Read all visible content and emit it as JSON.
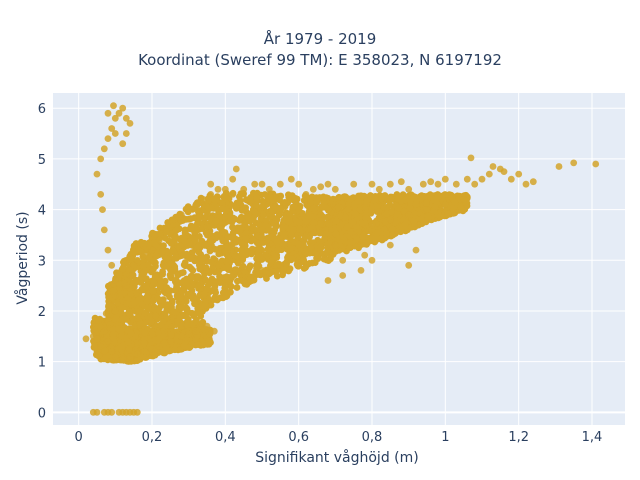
{
  "chart_data": {
    "type": "scatter",
    "title_line1": "År 1979 - 2019",
    "title_line2": "Koordinat (Sweref 99 TM): E 358023, N 6197192",
    "xlabel": "Signifikant våghöjd (m)",
    "ylabel": "Vågperiod (s)",
    "xlim": [
      -0.07,
      1.49
    ],
    "ylim": [
      -0.25,
      6.3
    ],
    "x_ticks": [
      0,
      0.2,
      0.4,
      0.6,
      0.8,
      1,
      1.2,
      1.4
    ],
    "x_tick_labels": [
      "0",
      "0,2",
      "0,4",
      "0,6",
      "0,8",
      "1",
      "1,2",
      "1,4"
    ],
    "y_ticks": [
      0,
      1,
      2,
      3,
      4,
      5,
      6
    ],
    "y_tick_labels": [
      "0",
      "1",
      "2",
      "3",
      "4",
      "5",
      "6"
    ],
    "grid": true,
    "legend": "none",
    "colors": {
      "marker": "#d4a52a",
      "plot_bg": "#e5ecf6",
      "grid": "#ffffff",
      "text": "#2a3f5f"
    },
    "points": [
      [
        0.04,
        1.5
      ],
      [
        0.05,
        1.45
      ],
      [
        0.07,
        1.6
      ],
      [
        0.08,
        1.4
      ],
      [
        0.06,
        1.3
      ],
      [
        0.09,
        1.2
      ],
      [
        0.1,
        1.1
      ],
      [
        0.12,
        1.05
      ],
      [
        0.14,
        1.1
      ],
      [
        0.16,
        1.15
      ],
      [
        0.18,
        1.2
      ],
      [
        0.2,
        1.25
      ],
      [
        0.22,
        1.3
      ],
      [
        0.25,
        1.4
      ],
      [
        0.28,
        1.5
      ],
      [
        0.3,
        1.55
      ],
      [
        0.32,
        1.6
      ],
      [
        0.35,
        1.7
      ],
      [
        0.08,
        1.8
      ],
      [
        0.1,
        2.0
      ],
      [
        0.12,
        2.2
      ],
      [
        0.13,
        2.5
      ],
      [
        0.14,
        2.7
      ],
      [
        0.15,
        2.9
      ],
      [
        0.16,
        3.0
      ],
      [
        0.18,
        3.1
      ],
      [
        0.2,
        3.2
      ],
      [
        0.22,
        3.4
      ],
      [
        0.24,
        3.6
      ],
      [
        0.26,
        3.8
      ],
      [
        0.28,
        3.9
      ],
      [
        0.3,
        4.0
      ],
      [
        0.32,
        4.1
      ],
      [
        0.34,
        4.2
      ],
      [
        0.36,
        4.3
      ],
      [
        0.38,
        4.4
      ],
      [
        0.4,
        4.4
      ],
      [
        0.42,
        4.3
      ],
      [
        0.45,
        4.4
      ],
      [
        0.48,
        4.5
      ],
      [
        0.5,
        4.5
      ],
      [
        0.52,
        4.4
      ],
      [
        0.55,
        4.5
      ],
      [
        0.6,
        4.5
      ],
      [
        0.62,
        4.3
      ],
      [
        0.64,
        4.4
      ],
      [
        0.68,
        4.5
      ],
      [
        0.7,
        4.4
      ],
      [
        0.75,
        4.5
      ],
      [
        0.8,
        4.5
      ],
      [
        0.82,
        4.4
      ],
      [
        0.85,
        4.5
      ],
      [
        0.9,
        4.4
      ],
      [
        0.94,
        4.5
      ],
      [
        0.98,
        4.5
      ],
      [
        1.0,
        4.6
      ],
      [
        1.03,
        4.5
      ],
      [
        1.06,
        4.6
      ],
      [
        1.08,
        4.5
      ],
      [
        1.1,
        4.6
      ],
      [
        1.12,
        4.7
      ],
      [
        1.15,
        4.8
      ],
      [
        1.18,
        4.6
      ],
      [
        1.2,
        4.7
      ],
      [
        1.22,
        4.5
      ],
      [
        1.24,
        4.55
      ],
      [
        1.31,
        4.85
      ],
      [
        1.35,
        4.92
      ],
      [
        1.41,
        4.9
      ],
      [
        1.07,
        5.02
      ],
      [
        1.13,
        4.85
      ],
      [
        1.16,
        4.75
      ],
      [
        0.43,
        4.8
      ],
      [
        0.33,
        1.7
      ],
      [
        0.4,
        2.5
      ],
      [
        0.45,
        2.6
      ],
      [
        0.5,
        2.8
      ],
      [
        0.55,
        2.9
      ],
      [
        0.6,
        3.0
      ],
      [
        0.65,
        3.1
      ],
      [
        0.7,
        3.3
      ],
      [
        0.75,
        3.5
      ],
      [
        0.8,
        3.7
      ],
      [
        0.85,
        3.8
      ],
      [
        0.9,
        3.9
      ],
      [
        0.95,
        4.0
      ],
      [
        1.0,
        4.1
      ],
      [
        1.05,
        4.2
      ],
      [
        0.68,
        2.6
      ],
      [
        0.72,
        2.7
      ],
      [
        0.77,
        2.8
      ],
      [
        0.8,
        3.0
      ],
      [
        0.78,
        3.1
      ],
      [
        0.72,
        3.0
      ],
      [
        0.05,
        4.7
      ],
      [
        0.06,
        5.0
      ],
      [
        0.07,
        5.2
      ],
      [
        0.08,
        5.4
      ],
      [
        0.09,
        5.6
      ],
      [
        0.1,
        5.8
      ],
      [
        0.11,
        5.9
      ],
      [
        0.12,
        6.0
      ],
      [
        0.13,
        5.8
      ],
      [
        0.14,
        5.7
      ],
      [
        0.13,
        5.5
      ],
      [
        0.12,
        5.3
      ],
      [
        0.1,
        5.5
      ],
      [
        0.08,
        5.9
      ],
      [
        0.095,
        6.05
      ],
      [
        0.06,
        4.3
      ],
      [
        0.065,
        4.0
      ],
      [
        0.07,
        3.6
      ],
      [
        0.08,
        3.2
      ],
      [
        0.09,
        2.9
      ],
      [
        0.1,
        2.6
      ],
      [
        0.1,
        2.3
      ],
      [
        0.09,
        2.1
      ],
      [
        0.075,
        1.95
      ],
      [
        0.04,
        0
      ],
      [
        0.05,
        0
      ],
      [
        0.07,
        0
      ],
      [
        0.08,
        0
      ],
      [
        0.09,
        0
      ],
      [
        0.11,
        0
      ],
      [
        0.12,
        0
      ],
      [
        0.13,
        0
      ],
      [
        0.14,
        0
      ],
      [
        0.15,
        0
      ],
      [
        0.16,
        0
      ],
      [
        0.02,
        1.45
      ],
      [
        0.9,
        2.9
      ],
      [
        0.92,
        3.2
      ],
      [
        0.85,
        3.3
      ],
      [
        0.37,
        1.6
      ],
      [
        0.36,
        4.5
      ],
      [
        0.42,
        4.6
      ],
      [
        0.58,
        4.6
      ],
      [
        0.66,
        4.45
      ],
      [
        0.88,
        4.55
      ],
      [
        0.96,
        4.55
      ]
    ],
    "dense_regions": [
      {
        "x": [
          0.08,
          0.34
        ],
        "y_from_x": [
          [
            0.08,
            1.5,
            2.5
          ],
          [
            0.15,
            1.3,
            3.3
          ],
          [
            0.25,
            1.5,
            3.8
          ],
          [
            0.34,
            1.7,
            4.3
          ]
        ]
      },
      {
        "x": [
          0.34,
          0.7
        ],
        "y_from_x": [
          [
            0.34,
            2.0,
            4.3
          ],
          [
            0.45,
            2.5,
            4.35
          ],
          [
            0.55,
            2.7,
            4.3
          ],
          [
            0.7,
            3.0,
            4.25
          ]
        ]
      },
      {
        "x": [
          0.7,
          1.06
        ],
        "y_from_x": [
          [
            0.7,
            3.1,
            4.25
          ],
          [
            0.85,
            3.45,
            4.3
          ],
          [
            0.95,
            3.75,
            4.3
          ],
          [
            1.06,
            4.0,
            4.3
          ]
        ]
      },
      {
        "x": [
          0.04,
          0.36
        ],
        "y_from_x": [
          [
            0.04,
            1.05,
            1.9
          ],
          [
            0.15,
            1.0,
            1.6
          ],
          [
            0.25,
            1.2,
            1.6
          ],
          [
            0.36,
            1.35,
            1.65
          ]
        ]
      }
    ]
  }
}
